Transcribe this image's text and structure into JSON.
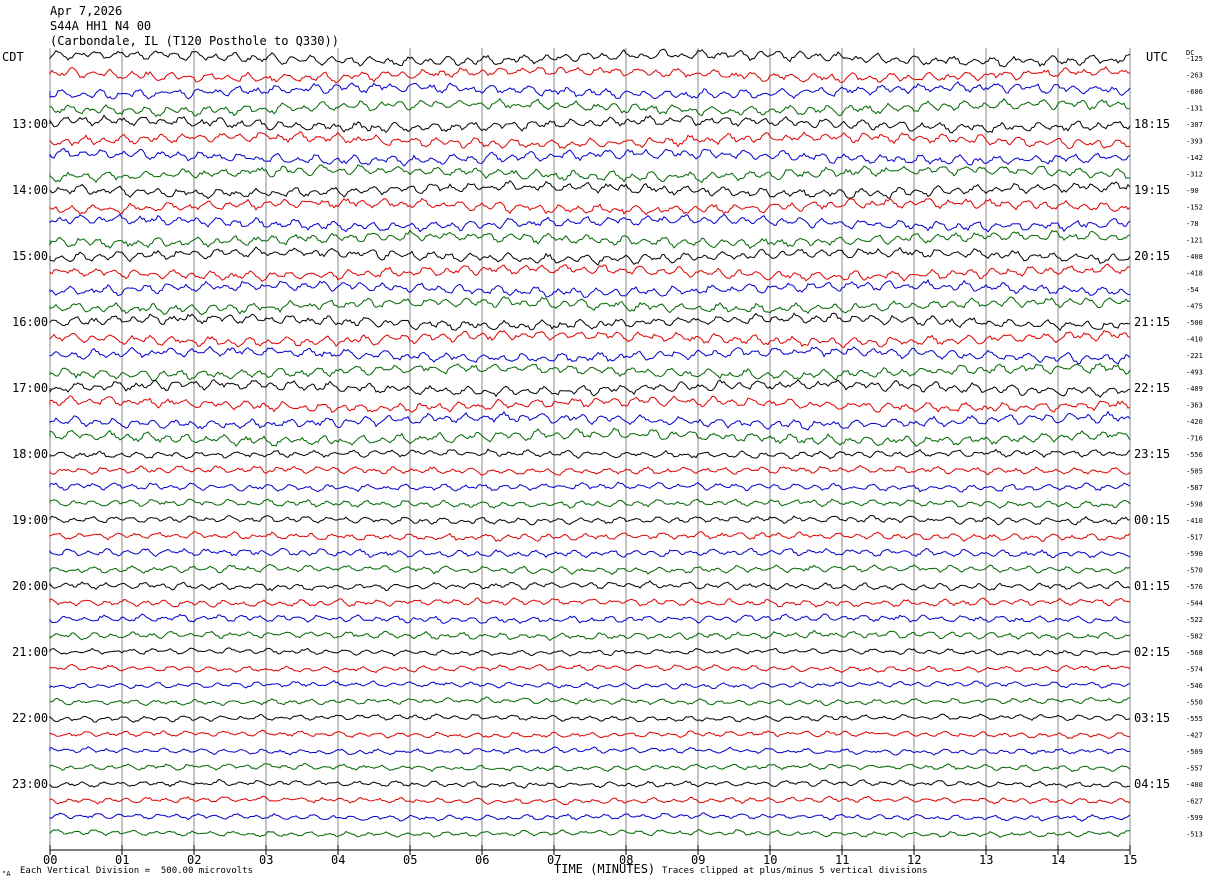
{
  "header": {
    "date": "Apr 7,2026",
    "station": "S44A HH1 N4 00",
    "location": "(Carbondale, IL (T120 Posthole to Q330))"
  },
  "labels": {
    "left_tz": "CDT",
    "right_tz": "UTC",
    "dc": "DC"
  },
  "footer": {
    "division": "Each Vertical Division =  500.00 microvolts",
    "clipped": "Traces clipped at plus/minus 5 vertical divisions",
    "corner_mark": "\"A"
  },
  "colors": {
    "trace_cycle": [
      "#000000",
      "#dd0000",
      "#0000cc",
      "#006600"
    ],
    "grid": "#888888"
  },
  "chart_data": {
    "type": "line",
    "xlabel": "TIME (MINUTES)",
    "x_ticks": [
      "00",
      "01",
      "02",
      "03",
      "04",
      "05",
      "06",
      "07",
      "08",
      "09",
      "10",
      "11",
      "12",
      "13",
      "14",
      "15"
    ],
    "xlim": [
      0,
      15
    ],
    "trace_count": 48,
    "minutes_per_trace": 15,
    "left_hour_labels": [
      "13:00",
      "14:00",
      "15:00",
      "16:00",
      "17:00",
      "18:00",
      "19:00",
      "20:00",
      "21:00",
      "22:00",
      "23:00"
    ],
    "right_hour_labels": [
      "18:15",
      "19:15",
      "20:15",
      "21:15",
      "22:15",
      "23:15",
      "00:15",
      "01:15",
      "02:15",
      "03:15",
      "04:15"
    ],
    "dc_offsets": [
      "-125",
      "-263",
      "-606",
      "-131",
      "-307",
      "-393",
      "-142",
      "-312",
      "-90",
      "-152",
      "-78",
      "-121",
      "-408",
      "-418",
      "-54",
      "-475",
      "-500",
      "-410",
      "-221",
      "-493",
      "-409",
      "-363",
      "-420",
      "-716",
      "-556",
      "-505",
      "-587",
      "-598",
      "-410",
      "-517",
      "-590",
      "-570",
      "-576",
      "-544",
      "-522",
      "-582",
      "-568",
      "-574",
      "-546",
      "-550",
      "-555",
      "-427",
      "-509",
      "-557",
      "-480",
      "-627",
      "-599",
      "-513"
    ]
  }
}
